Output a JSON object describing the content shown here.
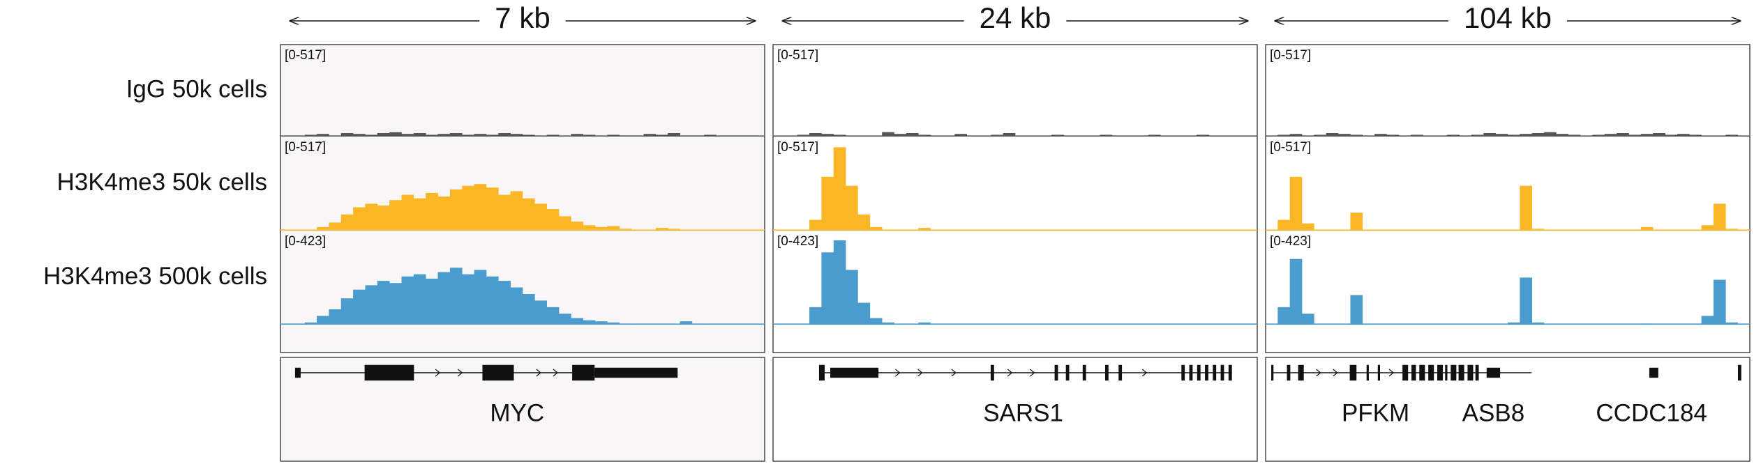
{
  "regions": [
    {
      "size": "7 kb",
      "genes": [
        "MYC"
      ]
    },
    {
      "size": "24 kb",
      "genes": [
        "SARS1"
      ]
    },
    {
      "size": "104 kb",
      "genes": [
        "PFKM",
        "ASB8",
        "CCDC184"
      ]
    }
  ],
  "tracks": [
    {
      "name": "IgG 50k cells",
      "color": "#555555",
      "panels": [
        {
          "range": {
            "value": 517,
            "label": "[0-517]"
          },
          "signal": [
            0,
            0,
            10,
            15,
            5,
            20,
            15,
            10,
            20,
            25,
            15,
            20,
            10,
            15,
            20,
            10,
            15,
            10,
            20,
            15,
            10,
            5,
            10,
            5,
            15,
            10,
            5,
            10,
            5,
            5,
            15,
            10,
            20,
            5,
            5,
            10,
            5,
            0,
            5,
            0
          ]
        },
        {
          "range": {
            "value": 517,
            "label": "[0-517]"
          },
          "signal": [
            0,
            5,
            10,
            20,
            15,
            10,
            5,
            0,
            5,
            25,
            15,
            20,
            10,
            5,
            0,
            15,
            5,
            0,
            10,
            20,
            5,
            0,
            5,
            10,
            0,
            5,
            0,
            10,
            5,
            0,
            5,
            10,
            5,
            0,
            5,
            10,
            5,
            0,
            5,
            0
          ]
        },
        {
          "range": {
            "value": 517,
            "label": "[0-517]"
          },
          "signal": [
            0,
            10,
            15,
            5,
            10,
            20,
            15,
            10,
            5,
            15,
            10,
            5,
            10,
            5,
            0,
            10,
            5,
            10,
            20,
            15,
            10,
            15,
            20,
            25,
            15,
            10,
            5,
            10,
            15,
            20,
            10,
            15,
            20,
            10,
            15,
            10,
            5,
            0,
            10,
            5
          ]
        }
      ]
    },
    {
      "name": "H3K4me3 50k cells",
      "color": "#fbb626",
      "panels": [
        {
          "range": {
            "value": 517,
            "label": "[0-517]"
          },
          "signal": [
            0,
            0,
            5,
            20,
            45,
            90,
            130,
            150,
            140,
            170,
            200,
            180,
            210,
            190,
            230,
            250,
            260,
            240,
            200,
            220,
            180,
            150,
            120,
            80,
            50,
            30,
            20,
            25,
            10,
            5,
            5,
            15,
            10,
            5,
            0,
            0,
            0,
            0,
            0,
            0
          ]
        },
        {
          "range": {
            "value": 517,
            "label": "[0-517]"
          },
          "signal": [
            0,
            0,
            0,
            60,
            300,
            465,
            250,
            90,
            20,
            5,
            0,
            0,
            15,
            0,
            0,
            0,
            0,
            0,
            0,
            0,
            0,
            0,
            0,
            0,
            0,
            0,
            0,
            0,
            0,
            0,
            0,
            0,
            0,
            0,
            0,
            0,
            0,
            0,
            0,
            0
          ]
        },
        {
          "range": {
            "value": 517,
            "label": "[0-517]"
          },
          "signal": [
            0,
            60,
            300,
            40,
            0,
            0,
            0,
            100,
            0,
            0,
            0,
            0,
            0,
            0,
            0,
            0,
            0,
            0,
            0,
            0,
            0,
            250,
            10,
            0,
            0,
            0,
            0,
            0,
            0,
            0,
            0,
            20,
            0,
            0,
            0,
            0,
            30,
            150,
            10,
            0
          ]
        }
      ]
    },
    {
      "name": "H3K4me3 500k cells",
      "color": "#4a9ccf",
      "panels": [
        {
          "range": {
            "value": 423,
            "label": "[0-423]"
          },
          "signal": [
            0,
            0,
            10,
            40,
            70,
            120,
            160,
            180,
            200,
            190,
            220,
            230,
            210,
            240,
            260,
            230,
            250,
            220,
            200,
            170,
            140,
            110,
            80,
            50,
            30,
            20,
            15,
            10,
            5,
            0,
            0,
            0,
            0,
            15,
            5,
            0,
            0,
            0,
            0,
            0
          ]
        },
        {
          "range": {
            "value": 423,
            "label": "[0-423]"
          },
          "signal": [
            0,
            0,
            0,
            80,
            330,
            385,
            250,
            100,
            30,
            10,
            0,
            0,
            10,
            0,
            0,
            0,
            0,
            0,
            0,
            0,
            0,
            0,
            0,
            0,
            0,
            0,
            0,
            0,
            0,
            0,
            0,
            0,
            0,
            0,
            0,
            0,
            0,
            0,
            0,
            0
          ]
        },
        {
          "range": {
            "value": 423,
            "label": "[0-423]"
          },
          "signal": [
            0,
            80,
            300,
            50,
            0,
            0,
            0,
            135,
            0,
            0,
            0,
            0,
            0,
            0,
            0,
            0,
            0,
            0,
            0,
            0,
            10,
            215,
            10,
            0,
            0,
            0,
            0,
            0,
            0,
            0,
            0,
            5,
            0,
            0,
            0,
            0,
            40,
            205,
            10,
            0
          ]
        }
      ]
    }
  ]
}
